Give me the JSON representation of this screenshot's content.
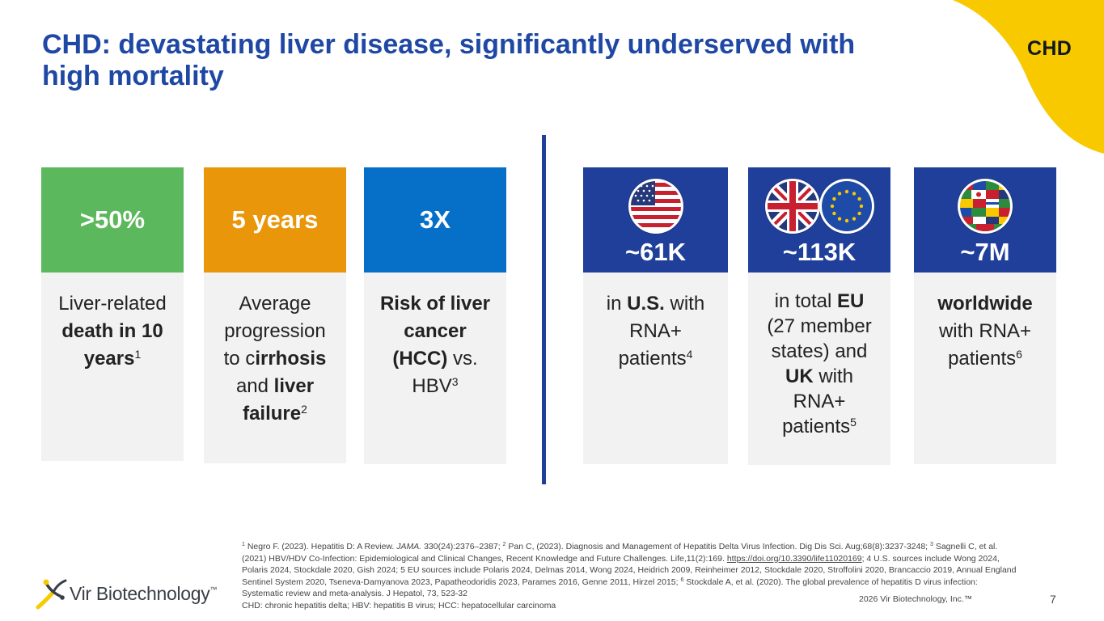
{
  "corner": {
    "label": "CHD",
    "color": "#f9c900"
  },
  "title": "CHD: devastating liver disease, significantly underserved with high mortality",
  "cards": [
    {
      "value": ">50%",
      "color": "#5cb85c",
      "desc": {
        "t1": "Liver-related ",
        "b1": "death in 10 years",
        "sup": "1"
      }
    },
    {
      "value": "5 years",
      "color": "#ea960a",
      "desc": {
        "t1": "Average progression to c",
        "b1": "irrhosis",
        "t2": " and ",
        "b2": "liver failure",
        "sup": "2"
      }
    },
    {
      "value": "3X",
      "color": "#0670c9",
      "desc": {
        "b1": "Risk of liver cancer (HCC)",
        "t1": " vs. HBV",
        "sup": "3"
      }
    },
    {
      "value": "~61K",
      "color": "#1f3f9a",
      "flags": [
        "us-flag-icon"
      ],
      "desc": {
        "t1": "in ",
        "b1": "U.S.",
        "t2": " with RNA+ patients",
        "sup": "4"
      }
    },
    {
      "value": "~113K",
      "color": "#1f3f9a",
      "flags": [
        "uk-flag-icon",
        "eu-flag-icon"
      ],
      "desc": {
        "t1": "in total ",
        "b1": "EU",
        "t2": " (27 member states) and ",
        "b2": "UK",
        "t3": " with RNA+ patients",
        "sup": "5"
      }
    },
    {
      "value": "~7M",
      "color": "#1f3f9a",
      "flags": [
        "world-flags-globe-icon"
      ],
      "desc": {
        "b1": "worldwide",
        "t1": " with RNA+ patients",
        "sup": "6"
      }
    }
  ],
  "footnote": {
    "s1": "1",
    "p1": " Negro F. (2023). Hepatitis D: A Review. ",
    "journal1": "JAMA.",
    "p2": " 330(24):2376–2387; ",
    "s2": "2",
    "p3": " Pan C, (2023). Diagnosis and Management of Hepatitis Delta Virus Infection. Dig Dis Sci. Aug;68(8):3237-3248; ",
    "s3": "3",
    "p4": " Sagnelli C, et al. (2021) HBV/HDV Co-Infection: Epidemiological and Clinical Changes, Recent Knowledge and Future Challenges. Life,11(2):169. ",
    "link": "https://doi.org/10.3390/life11020169",
    "p5": "; 4 U.S. sources include Wong 2024, Polaris 2024, Stockdale 2020, Gish 2024; 5 EU sources include Polaris 2024, Delmas 2014, Wong 2024, Heidrich 2009, Reinheimer 2012, Stockdale 2020, Stroffolini 2020, Brancaccio 2019, Annual England Sentinel System 2020, Tseneva-Damyanova 2023, Papatheodoridis 2023, Parames 2016, Genne 2011, Hirzel 2015; ",
    "s6": "6",
    "p6": " Stockdale A, et al. (2020). The global prevalence of hepatitis D virus infection: Systematic review and meta-analysis. J Hepatol, 73, 523-32",
    "abbrev": "CHD: chronic hepatitis delta; HBV: hepatitis B virus; HCC: hepatocellular carcinoma"
  },
  "copyright": "2026 Vir Biotechnology, Inc.™",
  "page_number": "7",
  "logo": {
    "name": "Vir Biotechnology",
    "tm": "™"
  }
}
